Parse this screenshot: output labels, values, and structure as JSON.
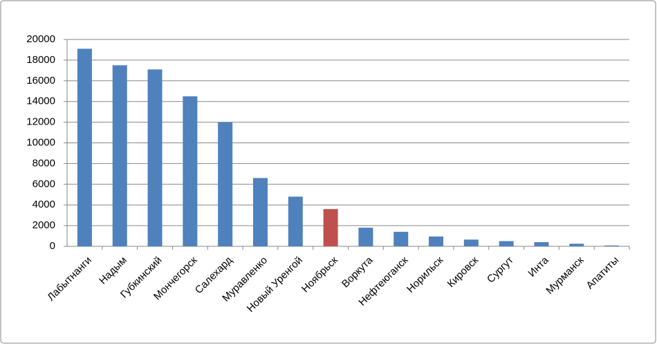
{
  "chart_data": {
    "type": "bar",
    "categories": [
      "Лабытнанги",
      "Надым",
      "Губкинский",
      "Мончегорск",
      "Салехард",
      "Муравленко",
      "Новый Уренгой",
      "Ноябрьск",
      "Воркута",
      "Нефтеюганск",
      "Норильск",
      "Кировск",
      "Сургут",
      "Инта",
      "Мурманск",
      "Апатиты"
    ],
    "values": [
      19100,
      17500,
      17100,
      14500,
      12000,
      6600,
      4800,
      3600,
      1800,
      1400,
      950,
      650,
      500,
      400,
      250,
      80
    ],
    "colors": [
      "#4f81bd",
      "#4f81bd",
      "#4f81bd",
      "#4f81bd",
      "#4f81bd",
      "#4f81bd",
      "#4f81bd",
      "#c0504d",
      "#4f81bd",
      "#4f81bd",
      "#4f81bd",
      "#4f81bd",
      "#4f81bd",
      "#4f81bd",
      "#4f81bd",
      "#4f81bd"
    ],
    "ylim": [
      0,
      20000
    ],
    "yticks": [
      0,
      2000,
      4000,
      6000,
      8000,
      10000,
      12000,
      14000,
      16000,
      18000,
      20000
    ],
    "grid": true
  }
}
